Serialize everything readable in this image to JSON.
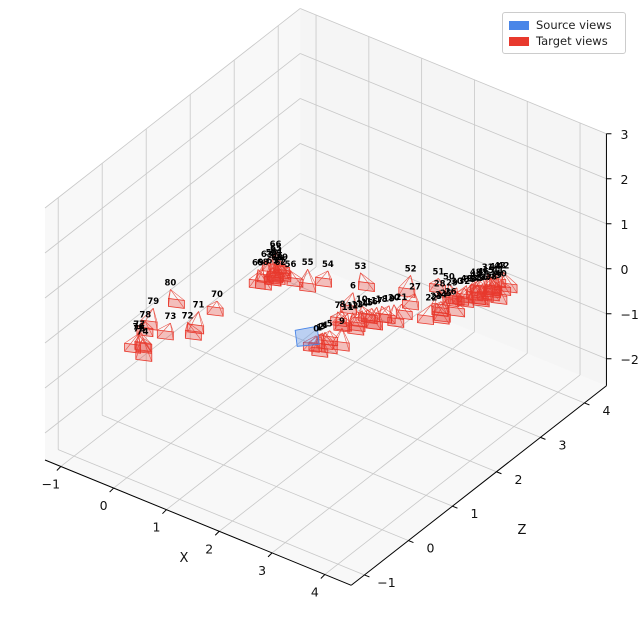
{
  "chart_data": {
    "type": "scatter-3d",
    "title": "",
    "xlabel": "X",
    "ylabel": "",
    "zlabel": "Z",
    "x_ticks": [
      "−1",
      "0",
      "1",
      "2",
      "3",
      "4"
    ],
    "z_ticks": [
      "−1",
      "0",
      "1",
      "2",
      "3",
      "4"
    ],
    "y_ticks": [
      "−2",
      "−1",
      "0",
      "1",
      "2",
      "3"
    ],
    "grid": true,
    "legend_position": "top-right",
    "series": [
      {
        "name": "Source views",
        "color": "#4a86e8"
      },
      {
        "name": "Target views",
        "color": "#e8392d"
      }
    ],
    "cameras": [
      {
        "label": "80",
        "x": -1.05,
        "z": 1.25,
        "y": -0.55
      },
      {
        "label": "79",
        "x": -1.0,
        "z": 0.8,
        "y": -0.6
      },
      {
        "label": "78",
        "x": -0.9,
        "z": 0.5,
        "y": -0.62
      },
      {
        "label": "77",
        "x": -0.85,
        "z": 0.3,
        "y": -0.65
      },
      {
        "label": "76",
        "x": -0.82,
        "z": 0.25,
        "y": -0.66
      },
      {
        "label": "75",
        "x": -0.78,
        "z": 0.22,
        "y": -0.66
      },
      {
        "label": "74",
        "x": -0.7,
        "z": 0.2,
        "y": -0.67
      },
      {
        "label": "73",
        "x": -0.55,
        "z": 0.65,
        "y": -0.6
      },
      {
        "label": "72",
        "x": -0.35,
        "z": 0.8,
        "y": -0.6
      },
      {
        "label": "71",
        "x": -0.35,
        "z": 1.05,
        "y": -0.55
      },
      {
        "label": "70",
        "x": -0.25,
        "z": 1.35,
        "y": -0.5
      },
      {
        "label": "69",
        "x": -0.1,
        "z": 2.1,
        "y": -0.3
      },
      {
        "label": "68",
        "x": -0.05,
        "z": 2.15,
        "y": -0.3
      },
      {
        "label": "67",
        "x": 0.05,
        "z": 2.25,
        "y": -0.3
      },
      {
        "label": "66",
        "x": -0.1,
        "z": 2.5,
        "y": -0.2
      },
      {
        "label": "65",
        "x": -0.05,
        "z": 2.45,
        "y": -0.22
      },
      {
        "label": "64",
        "x": 0.0,
        "z": 2.4,
        "y": -0.24
      },
      {
        "label": "63",
        "x": -0.1,
        "z": 2.3,
        "y": -0.26
      },
      {
        "label": "62",
        "x": 0.2,
        "z": 2.25,
        "y": -0.26
      },
      {
        "label": "61",
        "x": 0.05,
        "z": 2.35,
        "y": -0.25
      },
      {
        "label": "60",
        "x": 0.1,
        "z": 2.3,
        "y": -0.25
      },
      {
        "label": "59",
        "x": 0.15,
        "z": 2.35,
        "y": -0.25
      },
      {
        "label": "58",
        "x": -0.05,
        "z": 2.35,
        "y": -0.25
      },
      {
        "label": "57",
        "x": 0.15,
        "z": 2.28,
        "y": -0.27
      },
      {
        "label": "56",
        "x": 0.35,
        "z": 2.3,
        "y": -0.27
      },
      {
        "label": "55",
        "x": 0.55,
        "z": 2.45,
        "y": -0.25
      },
      {
        "label": "54",
        "x": 0.85,
        "z": 2.55,
        "y": -0.22
      },
      {
        "label": "53",
        "x": 1.3,
        "z": 2.75,
        "y": -0.2
      },
      {
        "label": "52",
        "x": 2.0,
        "z": 3.05,
        "y": -0.15
      },
      {
        "label": "51",
        "x": 2.4,
        "z": 3.2,
        "y": -0.14
      },
      {
        "label": "50",
        "x": 2.6,
        "z": 3.2,
        "y": -0.16
      },
      {
        "label": "49",
        "x": 2.85,
        "z": 3.3,
        "y": -0.16
      },
      {
        "label": "48",
        "x": 2.9,
        "z": 3.45,
        "y": -0.1
      },
      {
        "label": "47",
        "x": 2.95,
        "z": 3.4,
        "y": -0.1
      },
      {
        "label": "46",
        "x": 3.0,
        "z": 3.5,
        "y": -0.08
      },
      {
        "label": "45",
        "x": 3.05,
        "z": 3.55,
        "y": -0.06
      },
      {
        "label": "44",
        "x": 3.1,
        "z": 3.65,
        "y": -0.04
      },
      {
        "label": "43",
        "x": 3.15,
        "z": 3.7,
        "y": -0.03
      },
      {
        "label": "42",
        "x": 3.2,
        "z": 3.72,
        "y": -0.02
      },
      {
        "label": "41",
        "x": 3.18,
        "z": 3.62,
        "y": -0.06
      },
      {
        "label": "40",
        "x": 3.25,
        "z": 3.6,
        "y": -0.08
      },
      {
        "label": "39",
        "x": 3.2,
        "z": 3.55,
        "y": -0.1
      },
      {
        "label": "38",
        "x": 3.15,
        "z": 3.5,
        "y": -0.12
      },
      {
        "label": "37",
        "x": 3.1,
        "z": 3.45,
        "y": -0.12
      },
      {
        "label": "36",
        "x": 3.05,
        "z": 3.42,
        "y": -0.12
      },
      {
        "label": "35",
        "x": 3.0,
        "z": 3.38,
        "y": -0.14
      },
      {
        "label": "34",
        "x": 2.95,
        "z": 3.35,
        "y": -0.15
      },
      {
        "label": "33",
        "x": 2.9,
        "z": 3.32,
        "y": -0.16
      },
      {
        "label": "32",
        "x": 2.85,
        "z": 3.25,
        "y": -0.18
      },
      {
        "label": "31",
        "x": 3.0,
        "z": 3.6,
        "y": -0.06
      },
      {
        "label": "30",
        "x": 2.75,
        "z": 3.2,
        "y": -0.18
      },
      {
        "label": "29",
        "x": 2.7,
        "z": 3.15,
        "y": -0.2
      },
      {
        "label": "28",
        "x": 2.55,
        "z": 3.05,
        "y": -0.22
      },
      {
        "label": "27",
        "x": 2.25,
        "z": 2.85,
        "y": -0.28
      },
      {
        "label": "26",
        "x": 2.8,
        "z": 3.0,
        "y": -0.24
      },
      {
        "label": "25",
        "x": 2.75,
        "z": 2.95,
        "y": -0.26
      },
      {
        "label": "24",
        "x": 2.7,
        "z": 2.9,
        "y": -0.28
      },
      {
        "label": "23",
        "x": 2.65,
        "z": 2.85,
        "y": -0.3
      },
      {
        "label": "22",
        "x": 2.6,
        "z": 2.8,
        "y": -0.32
      },
      {
        "label": "21",
        "x": 2.2,
        "z": 2.6,
        "y": -0.35
      },
      {
        "label": "20",
        "x": 2.1,
        "z": 2.55,
        "y": -0.37
      },
      {
        "label": "19",
        "x": 2.05,
        "z": 2.5,
        "y": -0.38
      },
      {
        "label": "18",
        "x": 1.95,
        "z": 2.45,
        "y": -0.4
      },
      {
        "label": "17",
        "x": 1.9,
        "z": 2.4,
        "y": -0.41
      },
      {
        "label": "16",
        "x": 1.85,
        "z": 2.35,
        "y": -0.42
      },
      {
        "label": "15",
        "x": 1.8,
        "z": 2.3,
        "y": -0.43
      },
      {
        "label": "14",
        "x": 1.75,
        "z": 2.25,
        "y": -0.44
      },
      {
        "label": "13",
        "x": 1.7,
        "z": 2.2,
        "y": -0.45
      },
      {
        "label": "12",
        "x": 1.65,
        "z": 2.15,
        "y": -0.46
      },
      {
        "label": "11",
        "x": 1.6,
        "z": 2.1,
        "y": -0.47
      },
      {
        "label": "10",
        "x": 1.7,
        "z": 2.3,
        "y": -0.4
      },
      {
        "label": "9",
        "x": 1.7,
        "z": 1.85,
        "y": -0.55
      },
      {
        "label": "8",
        "x": 1.5,
        "z": 2.1,
        "y": -0.45
      },
      {
        "label": "7",
        "x": 1.45,
        "z": 2.05,
        "y": -0.46
      },
      {
        "label": "6",
        "x": 1.45,
        "z": 2.4,
        "y": -0.3
      },
      {
        "label": "5",
        "x": 1.55,
        "z": 1.75,
        "y": -0.6
      },
      {
        "label": "4",
        "x": 1.5,
        "z": 1.7,
        "y": -0.62
      },
      {
        "label": "3",
        "x": 1.48,
        "z": 1.68,
        "y": -0.63
      },
      {
        "label": "2",
        "x": 1.46,
        "z": 1.66,
        "y": -0.64
      },
      {
        "label": "1",
        "x": 1.44,
        "z": 1.64,
        "y": -0.65
      },
      {
        "label": "0",
        "x": 1.42,
        "z": 1.6,
        "y": -0.66
      }
    ]
  }
}
